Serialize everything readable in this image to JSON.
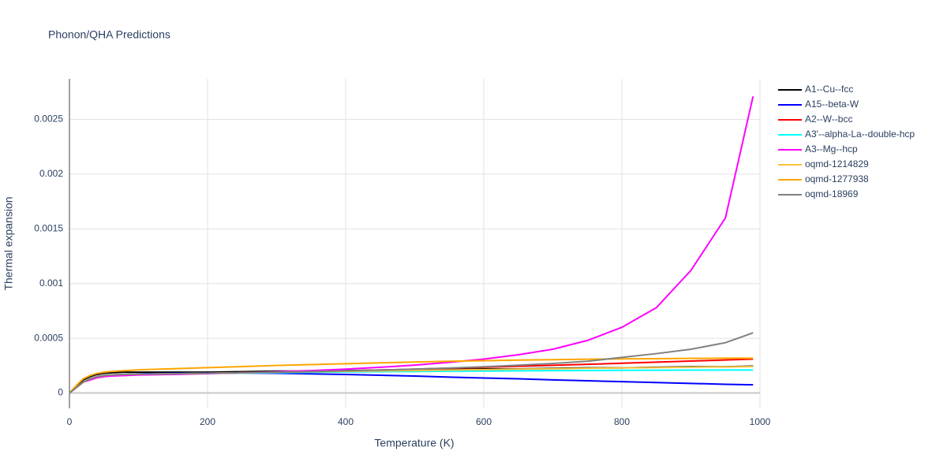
{
  "chart_data": {
    "type": "line",
    "title": "Phonon/QHA Predictions",
    "x_label": "Temperature (K)",
    "y_label": "Thermal expansion",
    "x": [
      0,
      10,
      20,
      30,
      40,
      50,
      60,
      80,
      100,
      150,
      200,
      250,
      300,
      350,
      400,
      450,
      500,
      550,
      600,
      650,
      700,
      750,
      800,
      850,
      900,
      950,
      990
    ],
    "xlim": [
      0,
      1000
    ],
    "xticks": [
      0,
      200,
      400,
      600,
      800,
      1000
    ],
    "ylim": [
      -0.00014,
      0.00287
    ],
    "yticks": [
      0,
      0.0005,
      0.001,
      0.0015,
      0.002,
      0.0025
    ],
    "grid": true,
    "legend": "right",
    "series": [
      {
        "name": "A1--Cu--fcc",
        "color": "#000000",
        "values": [
          0,
          6e-05,
          0.00012,
          0.00015,
          0.00017,
          0.00018,
          0.000185,
          0.00019,
          0.00019,
          0.00019,
          0.00019,
          0.000195,
          0.0002,
          0.0002,
          0.000205,
          0.00021,
          0.00021,
          0.000215,
          0.00022,
          0.00022,
          0.000225,
          0.00023,
          0.00023,
          0.000235,
          0.00024,
          0.00024,
          0.000245
        ]
      },
      {
        "name": "A15--beta-W",
        "color": "#0000ff",
        "values": [
          0,
          5e-05,
          0.0001,
          0.00013,
          0.00015,
          0.00016,
          0.00016,
          0.00017,
          0.000175,
          0.00018,
          0.000182,
          0.000183,
          0.00018,
          0.000175,
          0.00017,
          0.000162,
          0.000155,
          0.000145,
          0.000137,
          0.00013,
          0.00012,
          0.000112,
          0.000104,
          9.6e-05,
          8.8e-05,
          8e-05,
          7.5e-05
        ]
      },
      {
        "name": "A2--W--bcc",
        "color": "#ff0000",
        "values": [
          0,
          5e-05,
          0.0001,
          0.00013,
          0.00015,
          0.00016,
          0.000165,
          0.00017,
          0.000172,
          0.000176,
          0.00018,
          0.000185,
          0.00019,
          0.000196,
          0.000202,
          0.00021,
          0.000218,
          0.000226,
          0.000235,
          0.000244,
          0.000253,
          0.000262,
          0.000272,
          0.000282,
          0.000292,
          0.000302,
          0.00031
        ]
      },
      {
        "name": "A3'--alpha-La--double-hcp",
        "color": "#00ffff",
        "values": [
          0,
          5e-05,
          0.0001,
          0.00013,
          0.00015,
          0.00016,
          0.000165,
          0.00017,
          0.000172,
          0.000176,
          0.00018,
          0.000183,
          0.000186,
          0.000189,
          0.000192,
          0.000195,
          0.000197,
          0.000199,
          0.000201,
          0.000203,
          0.000205,
          0.000206,
          0.000207,
          0.000208,
          0.000209,
          0.00021,
          0.00021
        ]
      },
      {
        "name": "A3--Mg--hcp",
        "color": "#ff00ff",
        "values": [
          0,
          5e-05,
          0.0001,
          0.00012,
          0.00014,
          0.00015,
          0.000155,
          0.00016,
          0.000165,
          0.00017,
          0.000177,
          0.000185,
          0.000195,
          0.000205,
          0.000218,
          0.000235,
          0.000255,
          0.00028,
          0.00031,
          0.00035,
          0.0004,
          0.00048,
          0.0006,
          0.00078,
          0.00112,
          0.0016,
          0.00271
        ]
      },
      {
        "name": "oqmd-1214829",
        "color": "#f9c23c",
        "values": [
          0,
          5e-05,
          0.0001,
          0.00013,
          0.00015,
          0.00016,
          0.000165,
          0.00017,
          0.000172,
          0.000176,
          0.00018,
          0.000185,
          0.00019,
          0.000194,
          0.000198,
          0.000202,
          0.000206,
          0.00021,
          0.000214,
          0.000218,
          0.000222,
          0.000226,
          0.00023,
          0.000233,
          0.000236,
          0.000239,
          0.000242
        ]
      },
      {
        "name": "oqmd-1277938",
        "color": "#ffa500",
        "values": [
          0,
          7e-05,
          0.00013,
          0.00016,
          0.00018,
          0.00019,
          0.000197,
          0.000205,
          0.000212,
          0.000222,
          0.000232,
          0.000242,
          0.000252,
          0.00026,
          0.000268,
          0.000276,
          0.000283,
          0.00029,
          0.000296,
          0.000301,
          0.000305,
          0.000309,
          0.000312,
          0.000314,
          0.000316,
          0.000318,
          0.000318
        ]
      },
      {
        "name": "oqmd-18969",
        "color": "#808080",
        "values": [
          0,
          5e-05,
          0.0001,
          0.00013,
          0.00015,
          0.00016,
          0.000165,
          0.00017,
          0.000172,
          0.000176,
          0.00018,
          0.000185,
          0.00019,
          0.000196,
          0.000203,
          0.00021,
          0.000218,
          0.000228,
          0.00024,
          0.000254,
          0.00027,
          0.00029,
          0.000325,
          0.00036,
          0.0004,
          0.00046,
          0.00055
        ]
      }
    ]
  }
}
